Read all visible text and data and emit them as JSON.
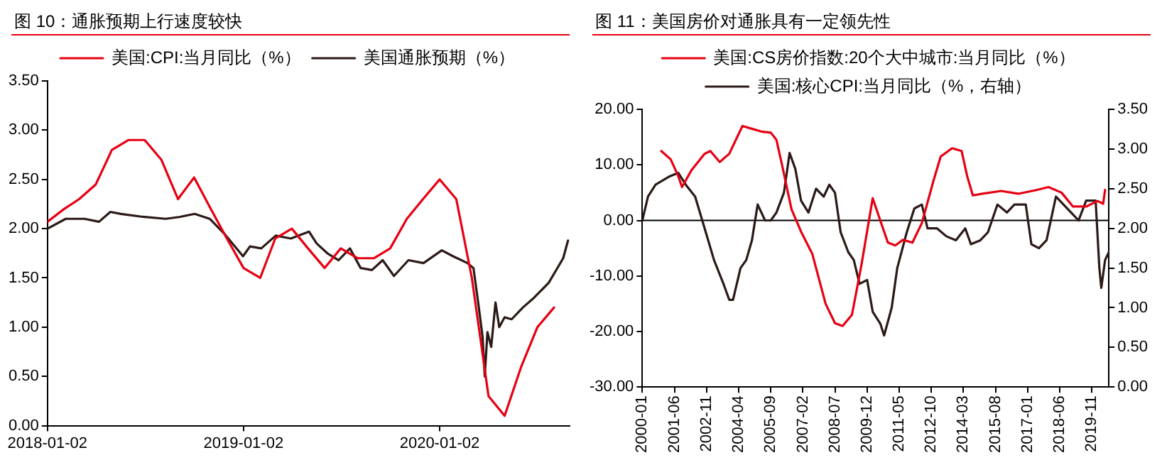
{
  "chart_data": [
    {
      "type": "line",
      "title": "图 10：通胀预期上行速度较快",
      "legend": "top",
      "grid": false,
      "xlim": [
        "2018-01-02",
        "2020-08-31"
      ],
      "xticks": [
        "2018-01-02",
        "2019-01-02",
        "2020-01-02"
      ],
      "ylim": [
        0,
        3.5
      ],
      "yticks": [
        {
          "value": 0,
          "label": "0.00"
        },
        {
          "value": 0.5,
          "label": "0.50"
        },
        {
          "value": 1,
          "label": "1.00"
        },
        {
          "value": 1.5,
          "label": "1.50"
        },
        {
          "value": 2,
          "label": "2.00"
        },
        {
          "value": 2.5,
          "label": "2.50"
        },
        {
          "value": 3,
          "label": "3.00"
        },
        {
          "value": 3.5,
          "label": "3.50"
        }
      ],
      "series": [
        {
          "name": "美国:CPI:当月同比（%）",
          "color": "#e60012",
          "x": [
            "2018-01-02",
            "2018-02-02",
            "2018-03-02",
            "2018-04-02",
            "2018-05-02",
            "2018-06-02",
            "2018-07-02",
            "2018-08-02",
            "2018-09-02",
            "2018-10-02",
            "2018-11-02",
            "2018-12-02",
            "2019-01-02",
            "2019-02-02",
            "2019-03-02",
            "2019-04-02",
            "2019-05-02",
            "2019-06-02",
            "2019-07-02",
            "2019-08-02",
            "2019-09-02",
            "2019-10-02",
            "2019-11-02",
            "2019-12-02",
            "2020-01-02",
            "2020-02-02",
            "2020-03-02",
            "2020-04-02",
            "2020-05-02",
            "2020-06-02",
            "2020-07-02",
            "2020-08-02"
          ],
          "values": [
            2.07,
            2.2,
            2.3,
            2.45,
            2.8,
            2.9,
            2.9,
            2.7,
            2.3,
            2.52,
            2.2,
            1.9,
            1.6,
            1.5,
            1.9,
            2.0,
            1.8,
            1.6,
            1.8,
            1.7,
            1.7,
            1.8,
            2.1,
            2.3,
            2.5,
            2.3,
            1.5,
            0.3,
            0.1,
            0.6,
            1.0,
            1.2
          ]
        },
        {
          "name": "美国通胀预期（%）",
          "color": "#2b1a17",
          "x": [
            "2018-01-02",
            "2018-02-05",
            "2018-03-12",
            "2018-04-08",
            "2018-04-29",
            "2018-05-19",
            "2018-06-29",
            "2018-08-10",
            "2018-09-06",
            "2018-10-03",
            "2018-10-31",
            "2018-11-27",
            "2019-01-01",
            "2019-01-14",
            "2019-02-04",
            "2019-03-03",
            "2019-03-31",
            "2019-05-04",
            "2019-05-18",
            "2019-06-07",
            "2019-06-28",
            "2019-07-19",
            "2019-08-08",
            "2019-08-29",
            "2019-09-18",
            "2019-10-09",
            "2019-11-05",
            "2019-12-03",
            "2020-01-06",
            "2020-01-27",
            "2020-02-23",
            "2020-03-05",
            "2020-03-15",
            "2020-03-22",
            "2020-03-26",
            "2020-03-31",
            "2020-04-07",
            "2020-04-15",
            "2020-04-22",
            "2020-05-02",
            "2020-05-15",
            "2020-06-05",
            "2020-06-26",
            "2020-07-23",
            "2020-08-19",
            "2020-08-28"
          ],
          "values": [
            2.0,
            2.1,
            2.1,
            2.07,
            2.17,
            2.15,
            2.12,
            2.1,
            2.12,
            2.15,
            2.1,
            1.95,
            1.72,
            1.82,
            1.8,
            1.93,
            1.9,
            1.97,
            1.85,
            1.75,
            1.68,
            1.8,
            1.6,
            1.58,
            1.68,
            1.52,
            1.68,
            1.65,
            1.78,
            1.72,
            1.65,
            1.6,
            1.2,
            0.9,
            0.5,
            0.95,
            0.8,
            1.25,
            1.0,
            1.1,
            1.08,
            1.2,
            1.3,
            1.45,
            1.7,
            1.88
          ]
        }
      ]
    },
    {
      "type": "line",
      "title": "图 11：美国房价对通胀具有一定领先性",
      "legend": "top",
      "grid": false,
      "xlim": [
        "2000-01",
        "2020-08"
      ],
      "xticks": [
        "2000-01",
        "2001-06",
        "2002-11",
        "2004-04",
        "2005-09",
        "2007-02",
        "2008-07",
        "2009-12",
        "2011-05",
        "2012-10",
        "2014-03",
        "2015-08",
        "2017-01",
        "2018-06",
        "2019-11"
      ],
      "ylim": [
        -30,
        20
      ],
      "yticks": [
        {
          "value": -30,
          "label": "-30.00"
        },
        {
          "value": -20,
          "label": "-20.00"
        },
        {
          "value": -10,
          "label": "-10.00"
        },
        {
          "value": 0,
          "label": "0.00"
        },
        {
          "value": 10,
          "label": "10.00"
        },
        {
          "value": 20,
          "label": "20.00"
        }
      ],
      "y2lim": [
        0,
        3.5
      ],
      "y2ticks": [
        {
          "value": 0,
          "label": "0.00"
        },
        {
          "value": 0.5,
          "label": "0.50"
        },
        {
          "value": 1,
          "label": "1.00"
        },
        {
          "value": 1.5,
          "label": "1.50"
        },
        {
          "value": 2,
          "label": "2.00"
        },
        {
          "value": 2.5,
          "label": "2.50"
        },
        {
          "value": 3,
          "label": "3.00"
        },
        {
          "value": 3.5,
          "label": "3.50"
        }
      ],
      "ref_lines": [
        {
          "axis": "y",
          "value": 0,
          "color": "#000000"
        }
      ],
      "series": [
        {
          "name": "美国:CS房价指数:20个大中城市:当月同比（%）",
          "color": "#e60012",
          "x": [
            "2000-11",
            "2001-04",
            "2001-08",
            "2001-10",
            "2002-03",
            "2002-10",
            "2003-01",
            "2003-06",
            "2003-11",
            "2004-06",
            "2004-11",
            "2005-04",
            "2005-09",
            "2005-12",
            "2006-03",
            "2006-08",
            "2007-01",
            "2007-07",
            "2008-02",
            "2008-07",
            "2008-11",
            "2009-04",
            "2009-09",
            "2010-03",
            "2010-07",
            "2010-11",
            "2011-03",
            "2011-07",
            "2011-12",
            "2012-05",
            "2012-11",
            "2013-03",
            "2013-09",
            "2014-02",
            "2014-05",
            "2014-08",
            "2015-01",
            "2015-11",
            "2016-08",
            "2017-06",
            "2017-12",
            "2018-07",
            "2019-01",
            "2019-08",
            "2020-02",
            "2020-05",
            "2020-06"
          ],
          "values": [
            12.5,
            11,
            8,
            6,
            9,
            12,
            12.5,
            10.5,
            12,
            17,
            16.5,
            16,
            15.8,
            14.5,
            10,
            2,
            -2,
            -6,
            -15,
            -18.5,
            -19,
            -17,
            -8,
            4,
            0,
            -4,
            -4.5,
            -3.5,
            -4,
            -0.5,
            7,
            11.5,
            13,
            12.5,
            8,
            4.5,
            4.8,
            5.3,
            4.8,
            5.5,
            6,
            5,
            2.5,
            2.5,
            3.5,
            3,
            5.5
          ]
        },
        {
          "name": "美国:核心CPI:当月同比（%，右轴）",
          "color": "#2b1a17",
          "axis": "y2",
          "x": [
            "2000-01",
            "2000-04",
            "2000-08",
            "2001-03",
            "2001-08",
            "2001-12",
            "2002-05",
            "2002-10",
            "2003-03",
            "2003-08",
            "2003-11",
            "2004-01",
            "2004-05",
            "2004-08",
            "2004-11",
            "2005-02",
            "2005-06",
            "2005-09",
            "2005-12",
            "2006-04",
            "2006-07",
            "2006-10",
            "2007-01",
            "2007-05",
            "2007-09",
            "2008-01",
            "2008-04",
            "2008-07",
            "2008-10",
            "2009-02",
            "2009-05",
            "2009-08",
            "2009-12",
            "2010-03",
            "2010-07",
            "2010-09",
            "2011-01",
            "2011-04",
            "2011-09",
            "2012-01",
            "2012-05",
            "2012-08",
            "2013-01",
            "2013-06",
            "2013-11",
            "2014-04",
            "2014-07",
            "2014-12",
            "2015-04",
            "2015-09",
            "2016-02",
            "2016-06",
            "2016-12",
            "2017-03",
            "2017-07",
            "2017-11",
            "2018-04",
            "2018-08",
            "2018-12",
            "2019-04",
            "2019-08",
            "2020-01",
            "2020-03",
            "2020-04",
            "2020-06",
            "2020-08"
          ],
          "values": [
            2.1,
            2.4,
            2.55,
            2.65,
            2.7,
            2.55,
            2.4,
            2.0,
            1.6,
            1.3,
            1.1,
            1.1,
            1.5,
            1.6,
            1.85,
            2.3,
            2.1,
            2.1,
            2.2,
            2.45,
            2.95,
            2.75,
            2.35,
            2.2,
            2.5,
            2.4,
            2.55,
            2.45,
            1.95,
            1.7,
            1.6,
            1.3,
            1.35,
            0.95,
            0.8,
            0.65,
            1.0,
            1.5,
            1.95,
            2.25,
            2.3,
            2.0,
            2.0,
            1.9,
            1.85,
            2.0,
            1.8,
            1.85,
            1.95,
            2.3,
            2.2,
            2.3,
            2.3,
            1.8,
            1.75,
            1.85,
            2.4,
            2.3,
            2.2,
            2.1,
            2.35,
            2.35,
            1.5,
            1.25,
            1.6,
            1.7
          ]
        }
      ]
    }
  ]
}
